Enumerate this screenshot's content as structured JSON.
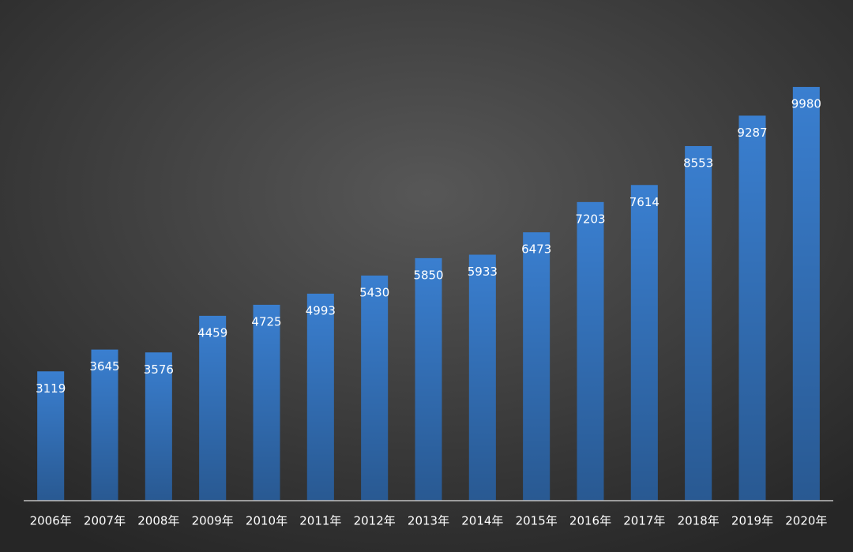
{
  "chart_data": {
    "type": "bar",
    "categories": [
      "2006年",
      "2007年",
      "2008年",
      "2009年",
      "2010年",
      "2011年",
      "2012年",
      "2013年",
      "2014年",
      "2015年",
      "2016年",
      "2017年",
      "2018年",
      "2019年",
      "2020年"
    ],
    "values": [
      3119,
      3645,
      3576,
      4459,
      4725,
      4993,
      5430,
      5850,
      5933,
      6473,
      7203,
      7614,
      8553,
      9287,
      9980
    ],
    "color": "#3a7fd0",
    "ylim": [
      0,
      10000
    ]
  }
}
